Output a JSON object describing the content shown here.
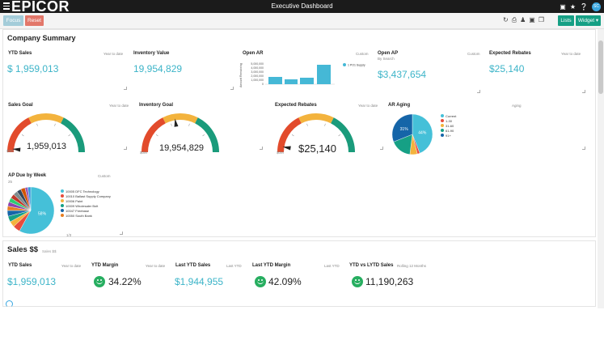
{
  "app": {
    "logo": "EPICOR",
    "title": "Executive Dashboard",
    "avatar_initials": "SC"
  },
  "topbar_icons": [
    "chat-icon",
    "star-icon",
    "help-icon"
  ],
  "toolbar": {
    "focus_label": "Focus",
    "reset_label": "Reset",
    "lists_label": "Lists",
    "widget_label": "Widget ▾",
    "tool_icons": [
      "refresh-icon",
      "print-icon",
      "share-icon",
      "delete-icon",
      "copy-icon"
    ]
  },
  "company_summary": {
    "title": "Company Summary",
    "ytd_sales": {
      "label": "YTD Sales",
      "period": "Year to date",
      "value": "$ 1,959,013"
    },
    "inventory_value": {
      "label": "Inventory Value",
      "value": "19,954,829"
    },
    "open_ar": {
      "label": "Open AR",
      "period": "Custom",
      "y_axis_label": "Amount Remaining",
      "y_ticks": [
        "5,000,000",
        "4,000,000",
        "3,000,000",
        "2,000,000",
        "1,000,000",
        "0"
      ],
      "legend": "1 PO1 Supply"
    },
    "open_ap": {
      "label": "Open AP",
      "sub": "By Search",
      "period": "Custom",
      "value": "$3,437,654"
    },
    "expected_rebates": {
      "label": "Expected Rebates",
      "period": "Year to date",
      "value": "$25,140"
    },
    "sales_goal": {
      "label": "Sales Goal",
      "period": "Year to date",
      "value": "1,959,013",
      "min": "$0M",
      "needle": 0.03
    },
    "inventory_goal": {
      "label": "Inventory Goal",
      "value": "19,954,829",
      "min": "$0M",
      "needle": 0.45
    },
    "expected_rebates_gauge": {
      "label": "Expected Rebates",
      "period": "Year to date",
      "value": "$25,140",
      "min": "$0M",
      "needle": 0.05
    },
    "ar_aging": {
      "label": "AR Aging",
      "period": "Aging",
      "legend": [
        "Current",
        "1-30",
        "31-60",
        "61-90",
        "91+"
      ],
      "colors": [
        "#45c0d8",
        "#e74c3c",
        "#f3b33d",
        "#16a085",
        "#1565a8"
      ],
      "values": [
        44,
        2,
        6,
        17,
        31
      ],
      "labels": [
        "44%",
        "",
        "",
        "",
        "31%"
      ]
    },
    "ap_due": {
      "label": "AP Due by Week",
      "period": "Custom",
      "sub_count": "25",
      "legend": [
        "10005 DFC Technology",
        "10010 Ballast Supply Company",
        "10006 Paint",
        "10009 Wholesaler Bolt",
        "10047 Freebase",
        "10050 South Bank"
      ],
      "legend_colors": [
        "#45c0d8",
        "#e74c3c",
        "#f3b33d",
        "#16a085",
        "#1565a8",
        "#e67e22"
      ],
      "slice_colors": [
        "#45c0d8",
        "#e74c3c",
        "#f3b33d",
        "#16a085",
        "#1565a8",
        "#e67e22",
        "#8e44ad",
        "#2ecc71",
        "#c0392b",
        "#7f8c8d",
        "#34495e",
        "#d35400",
        "#9b59b6",
        "#3498db"
      ],
      "values": [
        58,
        5,
        4,
        4,
        4,
        3,
        3,
        3,
        3,
        3,
        3,
        3,
        2,
        2
      ],
      "center_label": "58%",
      "pager": "1/3"
    }
  },
  "sales": {
    "title": "Sales $$",
    "sub": "Sales $$",
    "ytd_sales": {
      "label": "YTD Sales",
      "period": "Year to date",
      "value": "$1,959,013"
    },
    "ytd_margin": {
      "label": "YTD Margin",
      "period": "Year to date",
      "value": "34.22%"
    },
    "last_ytd_sales": {
      "label": "Last YTD Sales",
      "period": "Last YTD",
      "value": "$1,944,955"
    },
    "last_ytd_margin": {
      "label": "Last YTD Margin",
      "period": "Last YTD",
      "value": "42.09%"
    },
    "ytd_vs_lytd": {
      "label": "YTD vs LYTD Sales",
      "period": "Rolling 12 Months",
      "value": "11,190,263"
    }
  }
}
